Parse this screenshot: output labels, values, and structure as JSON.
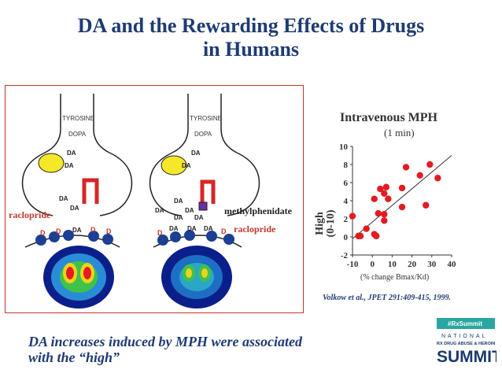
{
  "slide": {
    "title_line1": "DA and the Rewarding Effects of Drugs",
    "title_line2": "in Humans",
    "caption_line1": "DA increases induced by MPH were associated",
    "caption_line2": "with the “high”",
    "citation": "Volkow et al., JPET 291:409-415, 1999."
  },
  "diagram": {
    "tyrosine": "TYROSINE",
    "dopa": "DOPA",
    "da": "DA",
    "d2": "D",
    "raclopride": "raclopride",
    "methylphenidate": "methylphenidate",
    "colors": {
      "label_red": "#c0392b",
      "vesicle": "#f5e829",
      "receptor": "#1c3f94",
      "transporter": "#d62728"
    }
  },
  "logo": {
    "hashtag": "#RxSummit",
    "national": "NATIONAL",
    "subtitle": "RX DRUG ABUSE & HEROIN",
    "summit": "SUMMIT",
    "colors": {
      "navy": "#1b3a6b",
      "teal": "#2aa6a0"
    }
  },
  "chart_data": {
    "type": "scatter",
    "title": "Intravenous MPH",
    "subtitle": "(1 min)",
    "xlabel": "(% change Bmax/Kd)",
    "ylabel_line1": "High",
    "ylabel_line2": "(0-10)",
    "xlim": [
      -10,
      40
    ],
    "ylim": [
      -2,
      10
    ],
    "xticks": [
      -10,
      0,
      10,
      20,
      30,
      40
    ],
    "yticks": [
      -2,
      0,
      2,
      4,
      6,
      8,
      10
    ],
    "grid": false,
    "series": [
      {
        "color": "#e31b23",
        "points": [
          [
            -10,
            2.3
          ],
          [
            -7,
            0.1
          ],
          [
            -6,
            0.1
          ],
          [
            -3,
            0.9
          ],
          [
            1,
            0.3
          ],
          [
            1,
            4.2
          ],
          [
            2,
            0.1
          ],
          [
            3,
            2.6
          ],
          [
            4,
            5.3
          ],
          [
            6,
            1.8
          ],
          [
            6,
            2.5
          ],
          [
            6,
            4.8
          ],
          [
            7,
            5.5
          ],
          [
            8,
            4.2
          ],
          [
            15,
            3.3
          ],
          [
            15,
            5.4
          ],
          [
            17,
            7.7
          ],
          [
            24,
            6.8
          ],
          [
            27,
            3.5
          ],
          [
            29,
            8.0
          ],
          [
            33,
            6.5
          ]
        ]
      }
    ],
    "trendline": [
      [
        -10,
        -0.2
      ],
      [
        40,
        9.0
      ]
    ]
  }
}
